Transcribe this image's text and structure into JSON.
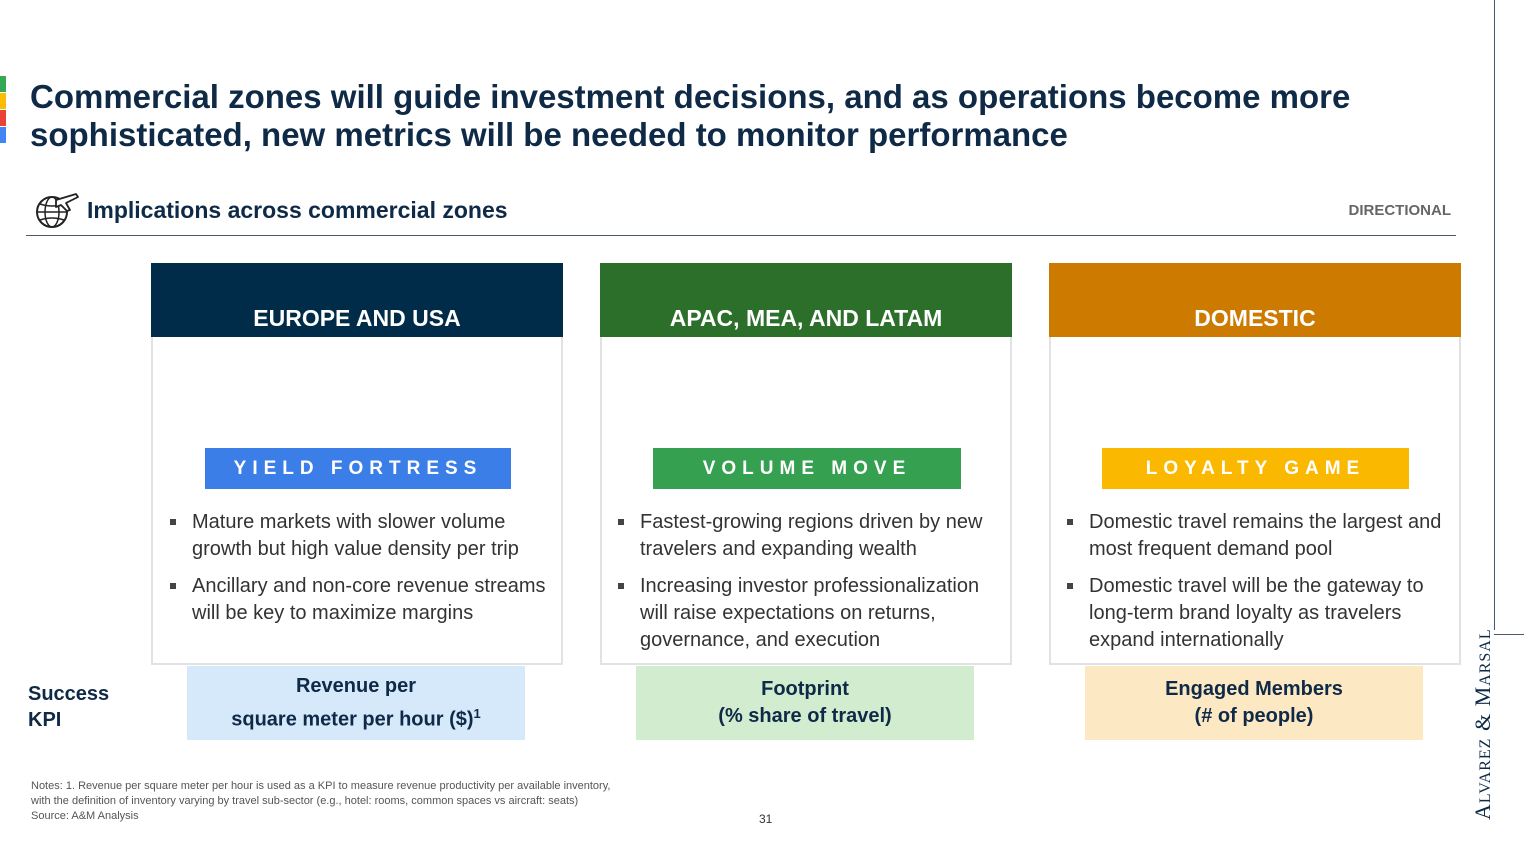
{
  "header": {
    "title": "Commercial zones will guide investment decisions, and as operations become more sophisticated, new metrics will be needed to monitor performance",
    "accent_colors": [
      "#34a853",
      "#fbbc04",
      "#ea4335",
      "#4285f4"
    ]
  },
  "section": {
    "icon": "globe-airplane-icon",
    "title": "Implications across commercial zones",
    "tag": "DIRECTIONAL"
  },
  "brand": "Alvarez & Marsal",
  "zones": [
    {
      "name": "EUROPE AND USA",
      "color": "#002b49",
      "badge": "YIELD FORTRESS",
      "badge_color": "#3c7ee8",
      "bullets": [
        "Mature markets with slower volume growth but high value density per trip",
        "Ancillary and non-core revenue streams will be key to maximize margins"
      ],
      "kpi_line1": "Revenue per",
      "kpi_line2": "square meter per hour ($)",
      "kpi_sup": "1",
      "kpi_color": "#d6e9fb"
    },
    {
      "name": "APAC, MEA, AND LATAM",
      "color": "#2b6f2b",
      "badge": "VOLUME MOVE",
      "badge_color": "#34a050",
      "bullets": [
        "Fastest-growing regions driven by new travelers and expanding wealth",
        "Increasing investor professionalization will raise expectations on returns, governance, and execution"
      ],
      "kpi_line1": "Footprint",
      "kpi_line2": "(% share of travel)",
      "kpi_color": "#d2ecd0"
    },
    {
      "name": "DOMESTIC",
      "color": "#cc7a00",
      "badge": "LOYALTY GAME",
      "badge_color": "#fbb800",
      "bullets": [
        "Domestic travel remains the largest and most frequent demand pool",
        "Domestic travel will be the gateway to long-term brand loyalty as travelers expand internationally"
      ],
      "kpi_line1": "Engaged Members",
      "kpi_line2": "(# of people)",
      "kpi_color": "#fde8c4"
    }
  ],
  "kpi": {
    "label_line1": "Success",
    "label_line2": "KPI"
  },
  "footer": {
    "notes_line1": "Notes: 1. Revenue per square meter per hour is used as a KPI to measure revenue productivity per available inventory,",
    "notes_line2": "with the definition of inventory varying by travel sub-sector (e.g., hotel: rooms, common spaces vs aircraft: seats)",
    "source": "Source: A&M Analysis",
    "page_number": "31"
  }
}
